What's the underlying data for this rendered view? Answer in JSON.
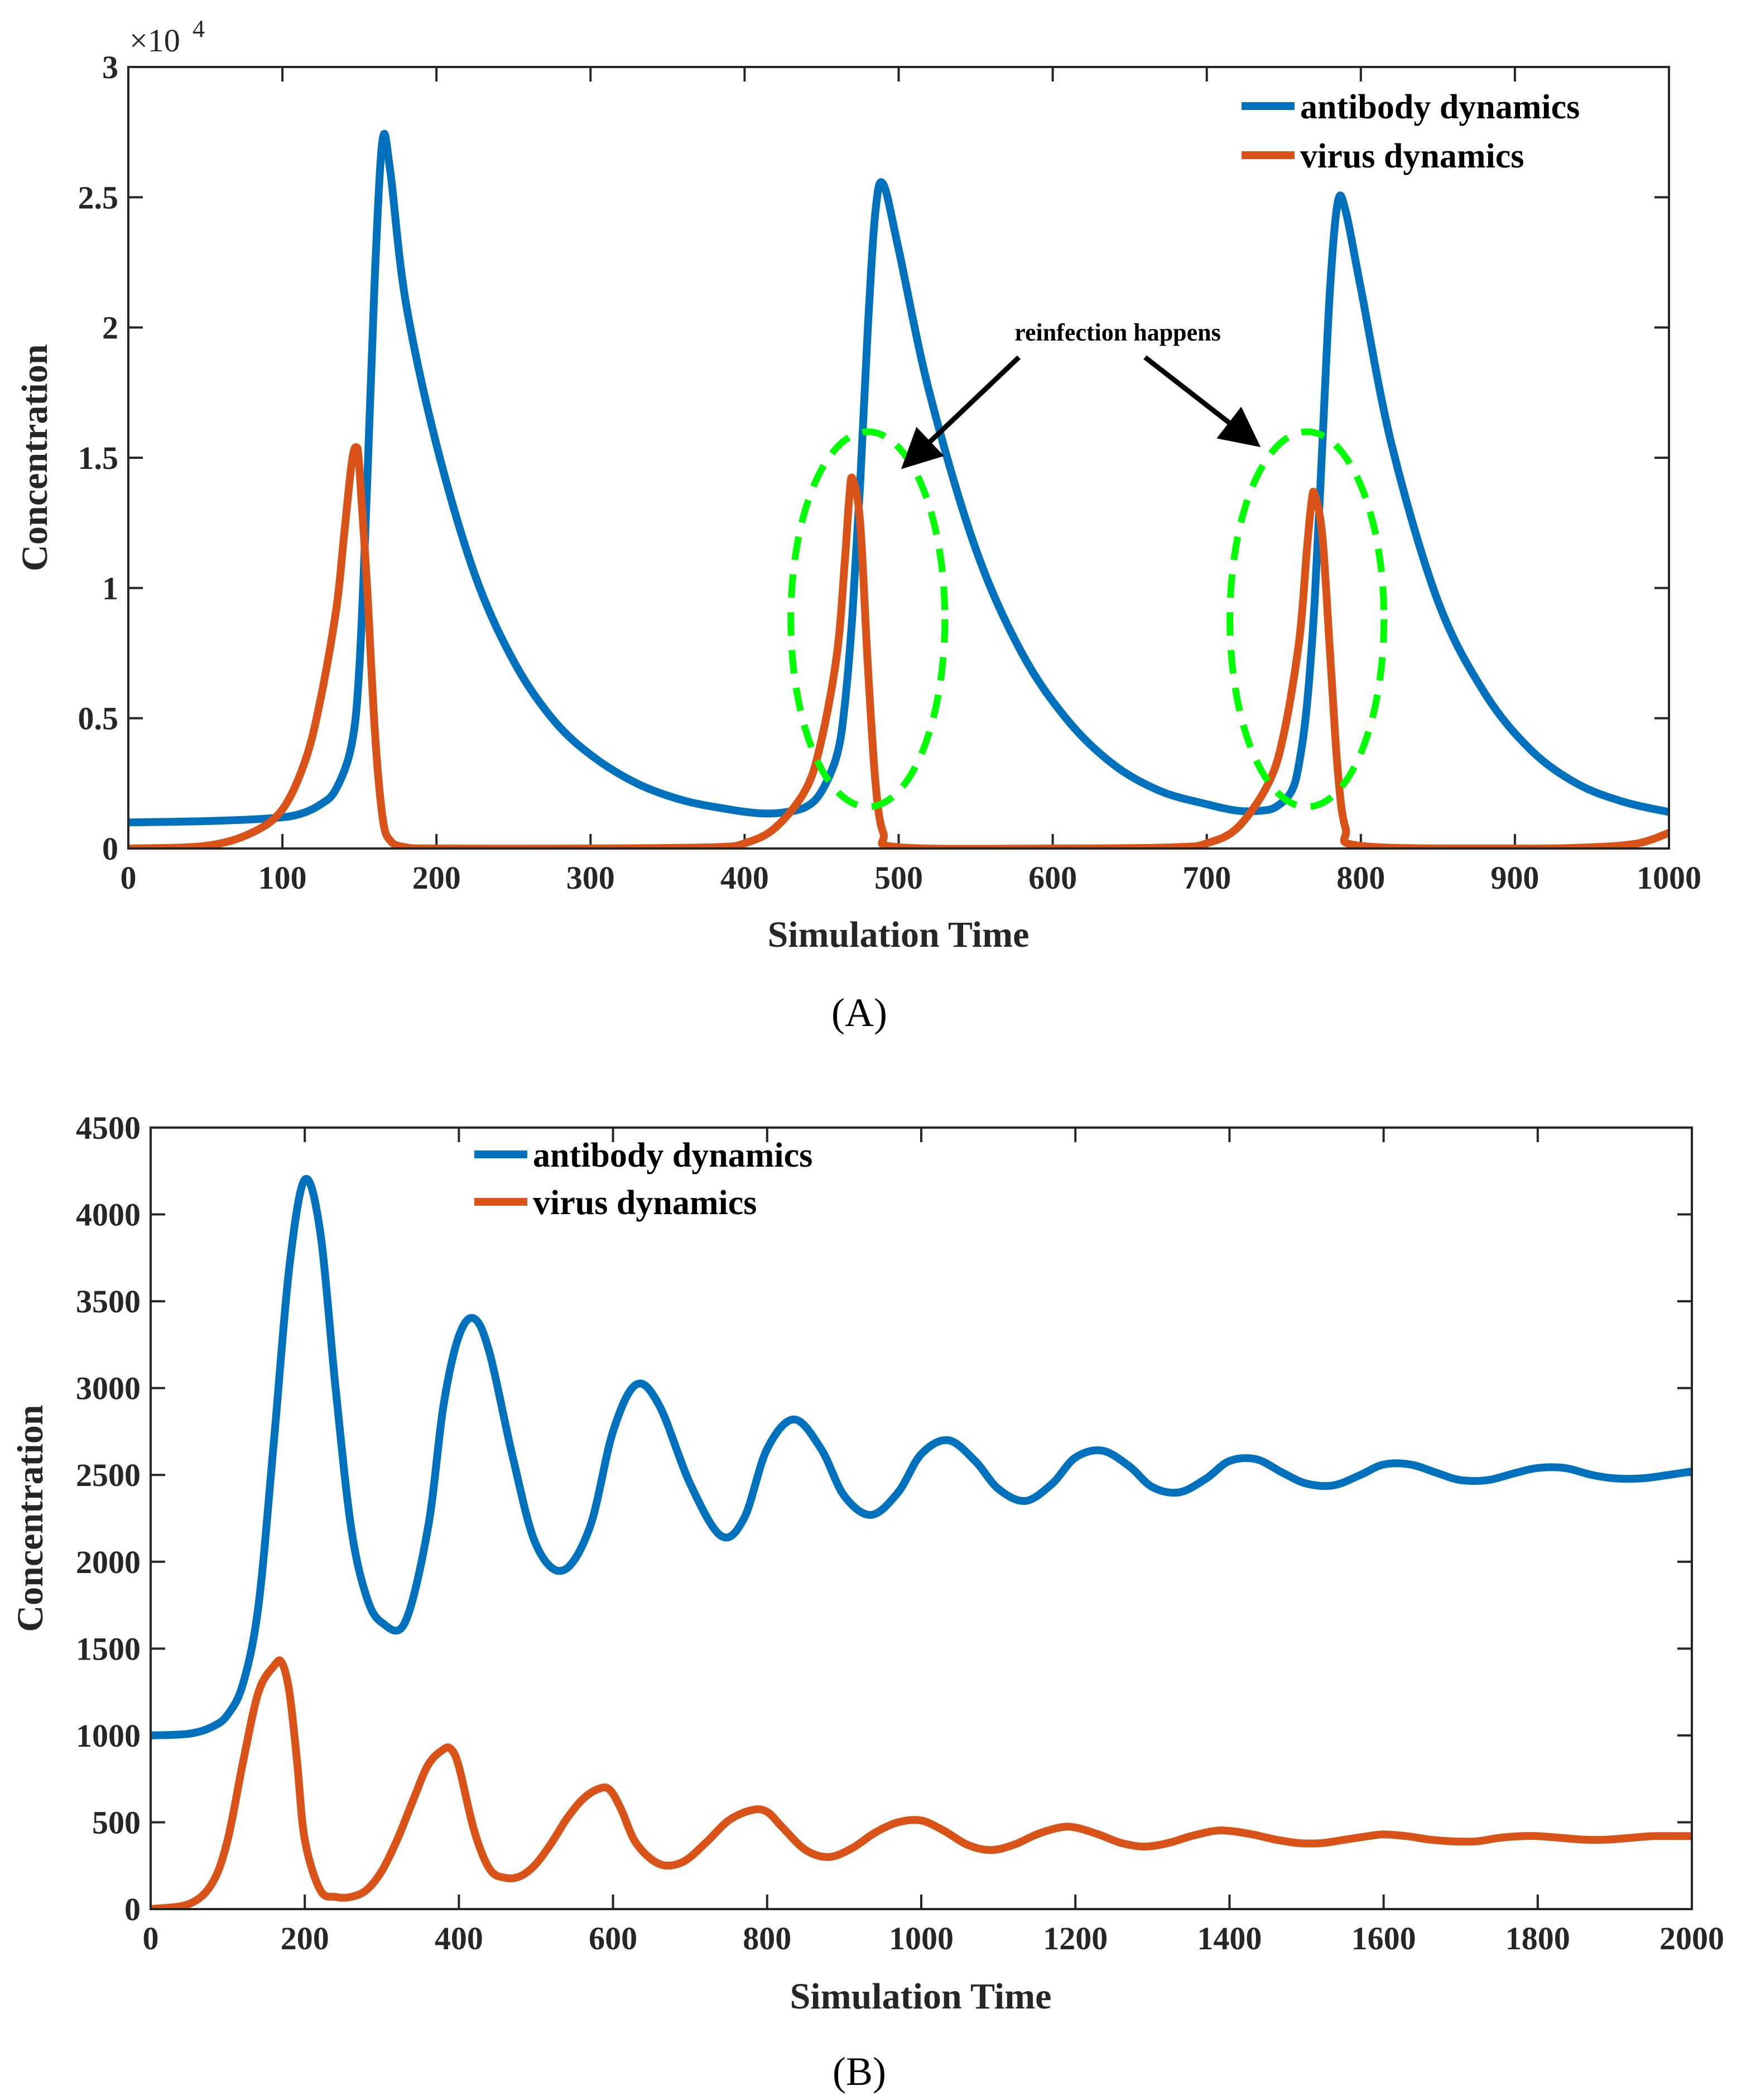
{
  "chart_data": [
    {
      "type": "line",
      "panel_label": "(A)",
      "xlabel": "Simulation Time",
      "ylabel": "Concentration",
      "xlim": [
        0,
        1000
      ],
      "ylim": [
        0,
        30000
      ],
      "xticks": [
        0,
        100,
        200,
        300,
        400,
        500,
        600,
        700,
        800,
        900,
        1000
      ],
      "xtick_labels": [
        "0",
        "100",
        "200",
        "300",
        "400",
        "500",
        "600",
        "700",
        "800",
        "900",
        "1000"
      ],
      "yticks": [
        0,
        5000,
        10000,
        15000,
        20000,
        25000,
        30000
      ],
      "ytick_labels": [
        "0",
        "0.5",
        "1",
        "1.5",
        "2",
        "2.5",
        "3"
      ],
      "exponent_label": {
        "base": "×10",
        "power": "4"
      },
      "legend_position": "top-right",
      "series": [
        {
          "name": "antibody dynamics",
          "color": "#0072BD",
          "x": [
            0,
            50,
            90,
            110,
            125,
            135,
            145,
            150,
            155,
            160,
            165,
            170,
            180,
            200,
            225,
            250,
            275,
            300,
            330,
            360,
            390,
            410,
            425,
            440,
            450,
            460,
            465,
            470,
            475,
            480,
            485,
            490,
            500,
            520,
            550,
            580,
            610,
            640,
            670,
            700,
            720,
            735,
            745,
            755,
            760,
            765,
            770,
            775,
            780,
            785,
            790,
            800,
            820,
            850,
            880,
            910,
            940,
            970,
            1000
          ],
          "y": [
            1000,
            1050,
            1150,
            1300,
            1700,
            2300,
            4000,
            7000,
            14000,
            22000,
            27200,
            26000,
            21000,
            15500,
            10500,
            7200,
            5000,
            3600,
            2500,
            1850,
            1500,
            1350,
            1380,
            1600,
            2200,
            3600,
            5500,
            9000,
            14000,
            20000,
            24500,
            25500,
            23000,
            17500,
            11500,
            7500,
            4900,
            3200,
            2200,
            1700,
            1450,
            1450,
            1600,
            2200,
            3300,
            5500,
            9500,
            15500,
            21500,
            24800,
            24500,
            21500,
            15500,
            9500,
            6000,
            3800,
            2500,
            1800,
            1400
          ]
        },
        {
          "name": "virus dynamics",
          "color": "#D95319",
          "x": [
            0,
            50,
            80,
            100,
            115,
            125,
            135,
            140,
            145,
            148,
            150,
            155,
            160,
            165,
            170,
            180,
            200,
            300,
            380,
            400,
            420,
            440,
            450,
            460,
            465,
            468,
            470,
            475,
            480,
            485,
            490,
            500,
            600,
            680,
            700,
            720,
            740,
            750,
            760,
            765,
            768,
            770,
            775,
            780,
            785,
            790,
            800,
            900,
            950,
            980,
            1000
          ],
          "y": [
            0,
            100,
            600,
            1500,
            3400,
            5800,
            9200,
            12000,
            14800,
            15400,
            14600,
            10000,
            4500,
            1200,
            300,
            50,
            0,
            0,
            50,
            200,
            800,
            2300,
            4200,
            7500,
            11000,
            13500,
            14200,
            12500,
            7000,
            2500,
            600,
            50,
            0,
            50,
            200,
            800,
            2500,
            4400,
            8000,
            11500,
            13300,
            13600,
            12000,
            7500,
            3000,
            800,
            100,
            0,
            50,
            200,
            600
          ]
        }
      ],
      "annotations": [
        {
          "text": "reinfection happens",
          "type": "arrow-label"
        },
        {
          "type": "dashed-ellipse",
          "color": "#00FF00",
          "center": [
            480,
            8800
          ],
          "radii": [
            50,
            7200
          ]
        },
        {
          "type": "dashed-ellipse",
          "color": "#00FF00",
          "center": [
            765,
            8800
          ],
          "radii": [
            50,
            7200
          ]
        }
      ]
    },
    {
      "type": "line",
      "panel_label": "(B)",
      "xlabel": "Simulation Time",
      "ylabel": "Concentration",
      "xlim": [
        0,
        2000
      ],
      "ylim": [
        0,
        4500
      ],
      "xticks": [
        0,
        200,
        400,
        600,
        800,
        1000,
        1200,
        1400,
        1600,
        1800,
        2000
      ],
      "xtick_labels": [
        "0",
        "200",
        "400",
        "600",
        "800",
        "1000",
        "1200",
        "1400",
        "1600",
        "1800",
        "2000"
      ],
      "yticks": [
        0,
        500,
        1000,
        1500,
        2000,
        2500,
        3000,
        3500,
        4000,
        4500
      ],
      "ytick_labels": [
        "0",
        "500",
        "1000",
        "1500",
        "2000",
        "2500",
        "3000",
        "3500",
        "4000",
        "4500"
      ],
      "legend_position": "top-center",
      "series": [
        {
          "name": "antibody dynamics",
          "color": "#0072BD",
          "x": [
            0,
            50,
            80,
            100,
            120,
            140,
            160,
            180,
            200,
            220,
            240,
            260,
            280,
            300,
            330,
            360,
            380,
            400,
            420,
            440,
            470,
            500,
            535,
            570,
            600,
            630,
            660,
            700,
            740,
            770,
            800,
            835,
            870,
            900,
            935,
            970,
            1000,
            1035,
            1070,
            1100,
            1135,
            1170,
            1200,
            1235,
            1270,
            1300,
            1335,
            1370,
            1400,
            1435,
            1470,
            1500,
            1535,
            1570,
            1600,
            1635,
            1670,
            1700,
            1735,
            1770,
            1800,
            1835,
            1870,
            1900,
            1935,
            1970,
            2000
          ],
          "y": [
            1000,
            1010,
            1050,
            1120,
            1300,
            1750,
            2700,
            3700,
            4200,
            3900,
            3000,
            2200,
            1800,
            1650,
            1650,
            2200,
            2900,
            3300,
            3400,
            3200,
            2600,
            2100,
            1950,
            2200,
            2750,
            3020,
            2900,
            2450,
            2150,
            2250,
            2650,
            2820,
            2650,
            2380,
            2270,
            2400,
            2620,
            2700,
            2580,
            2420,
            2350,
            2450,
            2600,
            2640,
            2550,
            2430,
            2400,
            2480,
            2580,
            2590,
            2510,
            2450,
            2440,
            2500,
            2560,
            2560,
            2510,
            2470,
            2470,
            2510,
            2540,
            2540,
            2500,
            2480,
            2480,
            2500,
            2520
          ]
        },
        {
          "name": "virus dynamics",
          "color": "#D95319",
          "x": [
            0,
            50,
            80,
            100,
            120,
            140,
            160,
            170,
            180,
            190,
            200,
            220,
            240,
            260,
            280,
            300,
            320,
            340,
            360,
            380,
            390,
            400,
            420,
            440,
            460,
            480,
            500,
            520,
            540,
            560,
            580,
            595,
            610,
            630,
            660,
            690,
            720,
            750,
            780,
            800,
            820,
            850,
            880,
            910,
            940,
            970,
            1000,
            1030,
            1060,
            1090,
            1120,
            1150,
            1180,
            1200,
            1230,
            1260,
            1290,
            1320,
            1350,
            1380,
            1400,
            1430,
            1460,
            1490,
            1520,
            1550,
            1580,
            1600,
            1630,
            1660,
            1690,
            1720,
            1750,
            1780,
            1800,
            1830,
            1860,
            1890,
            1920,
            1950,
            1980,
            2000
          ],
          "y": [
            0,
            30,
            150,
            400,
            850,
            1250,
            1400,
            1420,
            1250,
            850,
            400,
            110,
            70,
            70,
            110,
            220,
            400,
            620,
            830,
            920,
            920,
            820,
            450,
            230,
            180,
            190,
            260,
            380,
            520,
            630,
            690,
            690,
            580,
            380,
            260,
            270,
            380,
            510,
            570,
            560,
            470,
            340,
            300,
            350,
            440,
            500,
            510,
            450,
            370,
            340,
            370,
            430,
            470,
            470,
            430,
            380,
            360,
            380,
            420,
            450,
            450,
            430,
            400,
            380,
            380,
            400,
            420,
            430,
            420,
            400,
            390,
            390,
            410,
            420,
            420,
            410,
            400,
            400,
            410,
            420,
            420,
            420
          ]
        }
      ]
    }
  ]
}
